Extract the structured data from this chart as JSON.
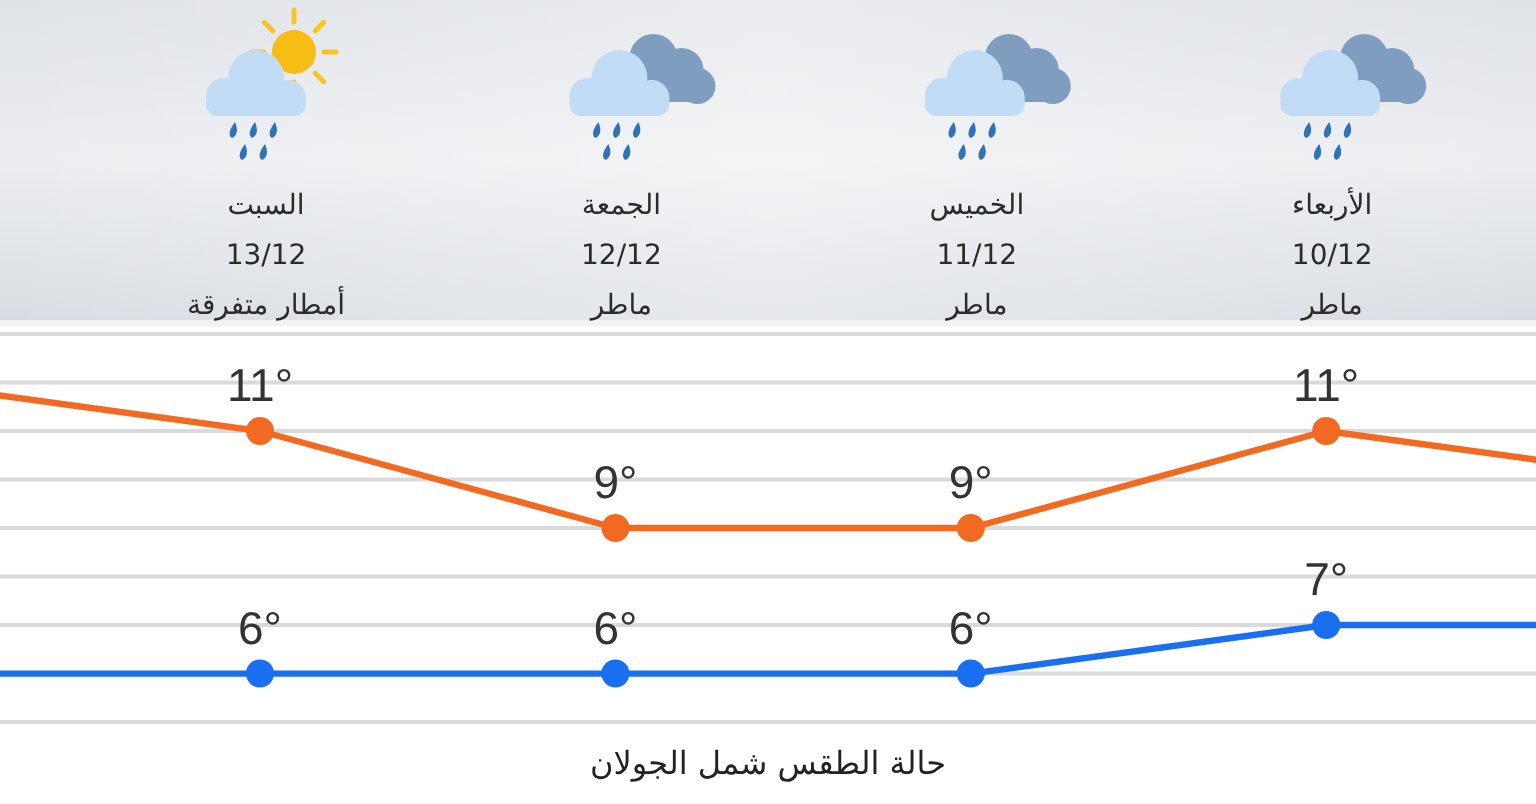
{
  "chart_data": {
    "type": "line",
    "title": "حالة الطقس شمل الجولان",
    "categories": [
      null,
      "السبت\n13/12\nأمطار متفرقة",
      "الجمعة\n12/12\nماطر",
      "الخميس\n11/12\nماطر",
      "الأربعاء\n10/12\nماطر",
      null
    ],
    "series": [
      {
        "color": "#f26a21",
        "values": [
          12,
          11,
          9,
          9,
          11,
          10
        ],
        "value_labels": [
          null,
          "11°",
          "9°",
          "9°",
          "11°",
          null
        ]
      },
      {
        "color": "#1a6ff0",
        "values": [
          6,
          6,
          6,
          6,
          7,
          7
        ],
        "value_labels": [
          null,
          "6°",
          "6°",
          "6°",
          "7°",
          null
        ]
      }
    ],
    "ylim": [
      5,
      13
    ],
    "yticks": [
      {
        "value": 5,
        "label": null
      },
      {
        "value": 6,
        "label": null
      },
      {
        "value": 7,
        "label": null
      },
      {
        "value": 8,
        "label": null
      },
      {
        "value": 9,
        "label": null
      },
      {
        "value": 10,
        "label": null
      },
      {
        "value": 11,
        "label": null
      },
      {
        "value": 12,
        "label": null
      },
      {
        "value": 13,
        "label": null
      }
    ],
    "grid": "y",
    "tick_labels": "x",
    "marker": "circle",
    "line_style": "solid"
  }
}
